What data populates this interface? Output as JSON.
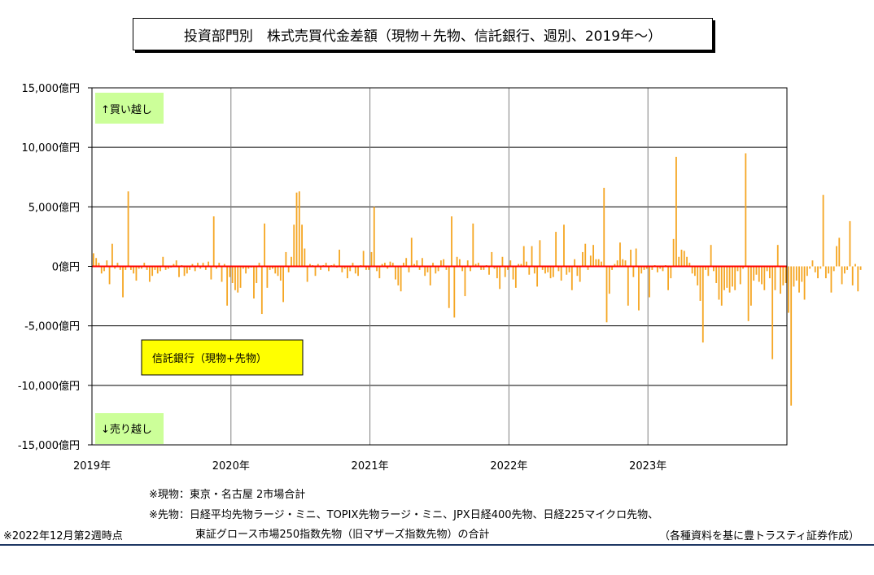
{
  "title": "投資部門別　株式売買代金差額（現物＋先物、信託銀行、週別、2019年～）",
  "annotations": {
    "buy": "↑買い越し",
    "sell": "↓売り越し",
    "series_box": "信託銀行（現物+先物）"
  },
  "footnotes": {
    "note1": "※現物：東京・名古屋 2市場合計",
    "note2": "※先物：日経平均先物ラージ・ミニ、TOPIX先物ラージ・ミニ、JPX日経400先物、日経225マイクロ先物、",
    "note3": "東証グロース市場250指数先物（旧マザーズ指数先物）の合計",
    "as_of": "※2022年12月第2週時点",
    "source": "（各種資料を基に豊トラスティ証券作成）"
  },
  "colors": {
    "bar": "#F5A623",
    "zero_line": "#FF0000",
    "annotation_bg": "#CCFF99",
    "series_box_bg": "#FFFF00",
    "bottom_rule": "#1F3864"
  },
  "chart_data": {
    "type": "bar",
    "title": "投資部門別　株式売買代金差額（現物＋先物、信託銀行、週別、2019年～）",
    "unit": "億円",
    "xlabel": "",
    "ylabel": "",
    "ylim": [
      -15000,
      15000
    ],
    "yticks": [
      15000,
      10000,
      5000,
      0,
      -5000,
      -10000,
      -15000
    ],
    "ytick_labels": [
      "15,000億円",
      "10,000億円",
      "5,000億円",
      "0億円",
      "-5,000億円",
      "-10,000億円",
      "-15,000億円"
    ],
    "xtick_labels": [
      "2019年",
      "2020年",
      "2021年",
      "2022年",
      "2023年"
    ],
    "x_start_year": 2019,
    "weeks_per_year": 52,
    "grid": true,
    "series": [
      {
        "name": "信託銀行（現物+先物）",
        "values": [
          1100,
          700,
          300,
          -600,
          -400,
          500,
          -1500,
          1900,
          -200,
          300,
          -300,
          -2600,
          -300,
          6300,
          -300,
          -600,
          -1200,
          -200,
          -200,
          300,
          -300,
          -1300,
          -800,
          -300,
          -600,
          -400,
          800,
          -300,
          -200,
          -100,
          200,
          500,
          -900,
          100,
          -800,
          -600,
          -300,
          200,
          -400,
          300,
          -200,
          300,
          -300,
          400,
          -1100,
          4200,
          -200,
          300,
          -1300,
          200,
          -3300,
          -900,
          -1400,
          -2000,
          -2200,
          -1800,
          -200,
          -600,
          -200,
          -100,
          -2700,
          -1400,
          300,
          -4000,
          3600,
          -1800,
          -300,
          -200,
          -600,
          -800,
          -1200,
          -3000,
          1200,
          -500,
          800,
          3500,
          6200,
          6300,
          3500,
          1500,
          -1300,
          200,
          100,
          -800,
          200,
          -300,
          100,
          300,
          -400,
          100,
          200,
          -100,
          1400,
          -500,
          -200,
          -1000,
          -400,
          300,
          -600,
          -800,
          100,
          1300,
          -300,
          -300,
          1200,
          5000,
          -400,
          -1000,
          200,
          300,
          -200,
          400,
          300,
          -1100,
          -1600,
          -2100,
          300,
          700,
          -500,
          2400,
          200,
          500,
          -300,
          700,
          -800,
          -500,
          -1600,
          300,
          -600,
          -400,
          500,
          600,
          -300,
          -3500,
          4200,
          -4300,
          800,
          600,
          -400,
          -2500,
          500,
          -400,
          3600,
          200,
          300,
          -300,
          -300,
          100,
          -700,
          1200,
          -200,
          -1000,
          -1900,
          800,
          -900,
          -300,
          500,
          -1100,
          -1800,
          200,
          200,
          1700,
          400,
          -700,
          1700,
          -600,
          -1700,
          2200,
          -300,
          -600,
          -500,
          -1000,
          -900,
          2900,
          -400,
          -1200,
          3500,
          -700,
          -500,
          -2000,
          600,
          -800,
          -1300,
          1200,
          1900,
          -300,
          900,
          1800,
          600,
          600,
          400,
          6600,
          -4700,
          -2300,
          -300,
          200,
          500,
          2000,
          600,
          500,
          -3300,
          1400,
          -900,
          1500,
          -3700,
          -600,
          -300,
          -200,
          -2600,
          -300,
          100,
          -500,
          -200,
          -400,
          100,
          -2000,
          -1000,
          2300,
          9200,
          800,
          1400,
          1300,
          800,
          300,
          -600,
          -800,
          -1600,
          -2900,
          -6400,
          -300,
          -800,
          1800,
          -400,
          -1400,
          -2800,
          -3300,
          -2000,
          -1800,
          -2200,
          -1700,
          -2000,
          -400,
          -1500,
          -200,
          9500,
          -4600,
          -3300,
          -1200,
          -700,
          -1300,
          -1500,
          -2000,
          -400,
          -1000,
          -7800,
          -2000,
          1800,
          -2300,
          -1600,
          -1400,
          -3900,
          -11700,
          -1700,
          -1200,
          -2200,
          -1300,
          -2800,
          -800,
          -200,
          500,
          -500,
          -1000,
          -200,
          6000,
          -1000,
          -600,
          -2200,
          -400,
          1700,
          2400,
          -1500,
          -600,
          -300,
          3800,
          -1600,
          200,
          -2100,
          -300
        ]
      }
    ]
  }
}
